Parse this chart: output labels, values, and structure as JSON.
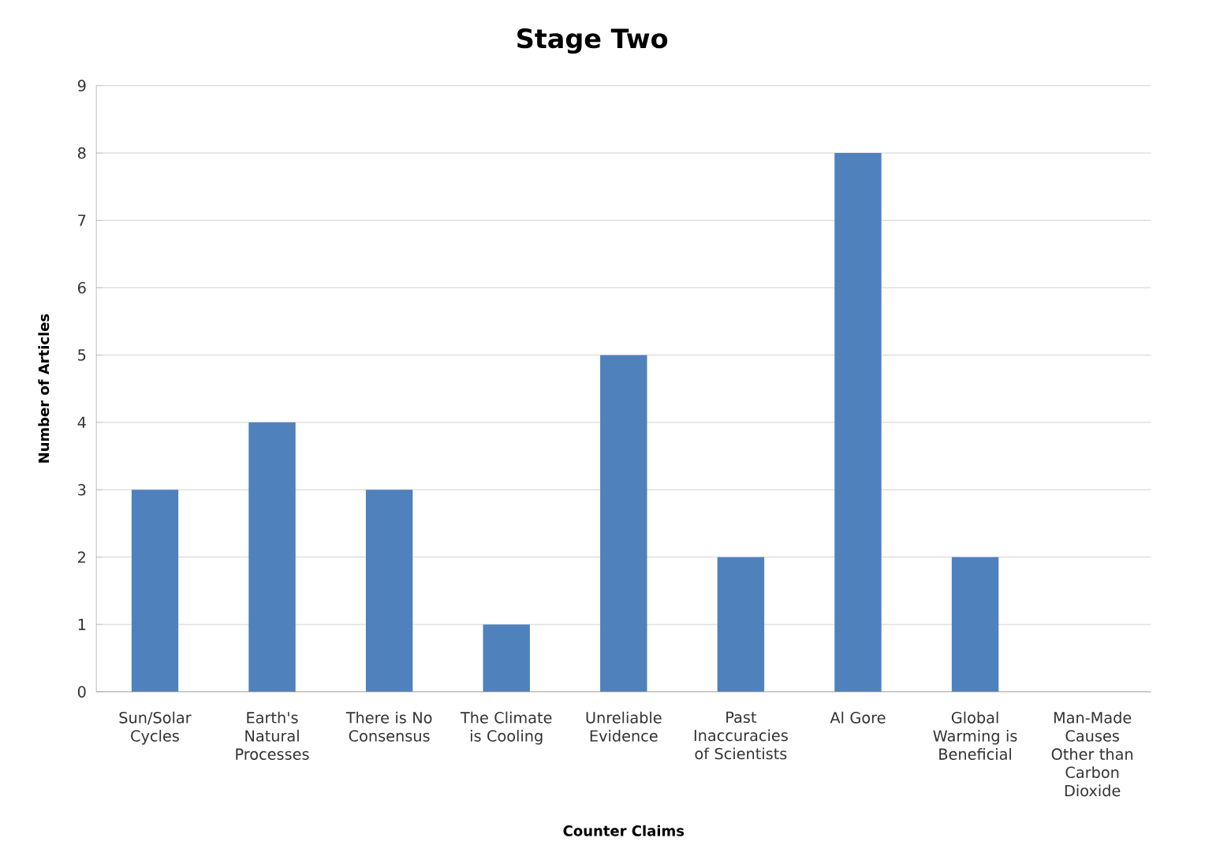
{
  "chart_data": {
    "type": "bar",
    "title": "Stage Two",
    "xlabel": "Counter Claims",
    "ylabel": "Number of Articles",
    "categories": [
      "Sun/Solar Cycles",
      "Earth's Natural Processes",
      "There is No Consensus",
      "The Climate is Cooling",
      "Unreliable Evidence",
      "Past Inaccuracies of Scientists",
      "Al Gore",
      "Global Warming is Beneficial",
      "Man-Made Causes Other than Carbon Dioxide"
    ],
    "values": [
      3,
      4,
      3,
      1,
      5,
      2,
      8,
      2,
      0
    ],
    "color": "#4f81bd",
    "ylim": [
      0,
      9
    ],
    "yticks": [
      0,
      1,
      2,
      3,
      4,
      5,
      6,
      7,
      8,
      9
    ],
    "grid": "y"
  }
}
